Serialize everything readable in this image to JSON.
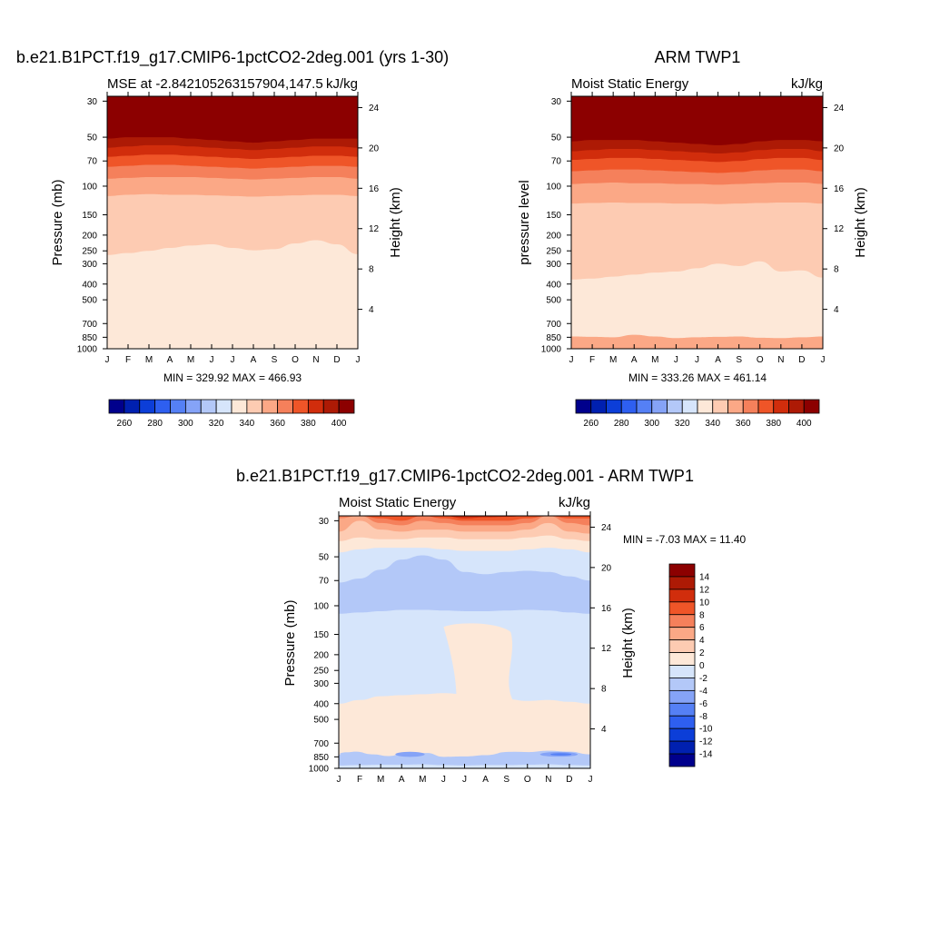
{
  "chart_data": [
    {
      "id": "model",
      "type": "heatmap",
      "title": "b.e21.B1PCT.f19_g17.CMIP6-1pctCO2-2deg.001 (yrs 1-30)",
      "left_label": "MSE at -2.842105263157904,147.5",
      "right_label": "kJ/kg",
      "ylabel": "Pressure (mb)",
      "ylabel_right": "Height (km)",
      "x_ticks": [
        "J",
        "F",
        "M",
        "A",
        "M",
        "J",
        "J",
        "A",
        "S",
        "O",
        "N",
        "D",
        "J"
      ],
      "y_ticks": [
        "30",
        "50",
        "70",
        "100",
        "150",
        "200",
        "250",
        "300",
        "400",
        "500",
        "700",
        "850",
        "1000"
      ],
      "height_ticks": [
        "24",
        "20",
        "16",
        "12",
        "8",
        "4"
      ],
      "minmax": "MIN = 329.92 MAX = 466.93",
      "levels": [
        260,
        270,
        280,
        290,
        300,
        310,
        320,
        330,
        340,
        350,
        360,
        370,
        380,
        390,
        400
      ],
      "colorbar_labels": [
        "260",
        "280",
        "300",
        "320",
        "340",
        "360",
        "380",
        "400"
      ],
      "colors": [
        "#00008c",
        "#0020b0",
        "#0c3ed8",
        "#2e5ff0",
        "#5580f5",
        "#85a3f7",
        "#b3c8f8",
        "#d6e5fb",
        "#fde8d8",
        "#fdcbb2",
        "#fba886",
        "#f5805b",
        "#ef5528",
        "#d12d0c",
        "#ad1a05",
        "#8c0000"
      ],
      "months": [
        "J",
        "F",
        "M",
        "A",
        "M",
        "J",
        "J",
        "A",
        "S",
        "O",
        "N",
        "D",
        "J"
      ],
      "boundaries_pressure": [
        {
          "level": 340,
          "p": [
            265,
            258,
            250,
            240,
            232,
            228,
            240,
            248,
            244,
            225,
            215,
            228,
            262
          ]
        },
        {
          "level": 350,
          "p": [
            115,
            113,
            112,
            113,
            113,
            114,
            115,
            116,
            115,
            114,
            113,
            113,
            115
          ]
        },
        {
          "level": 360,
          "p": [
            90,
            89,
            88,
            88,
            88,
            89,
            90,
            91,
            90,
            89,
            88,
            88,
            90
          ]
        },
        {
          "level": 370,
          "p": [
            76,
            75,
            74,
            74,
            75,
            76,
            77,
            78,
            77,
            76,
            75,
            75,
            76
          ]
        },
        {
          "level": 380,
          "p": [
            66,
            65,
            64,
            64,
            65,
            66,
            67,
            68,
            67,
            66,
            65,
            65,
            66
          ]
        },
        {
          "level": 390,
          "p": [
            58,
            57,
            56,
            56,
            57,
            58,
            59,
            60,
            59,
            58,
            57,
            57,
            58
          ]
        },
        {
          "level": 400,
          "p": [
            51,
            50,
            50,
            50,
            51,
            52,
            53,
            54,
            53,
            52,
            51,
            51,
            51
          ]
        }
      ],
      "surface_layer": {
        "level": 330,
        "p_top": 945
      }
    },
    {
      "id": "obs",
      "type": "heatmap",
      "title": "ARM TWP1",
      "left_label": "Moist Static Energy",
      "right_label": "kJ/kg",
      "ylabel": "pressure level",
      "ylabel_right": "Height (km)",
      "x_ticks": [
        "J",
        "F",
        "M",
        "A",
        "M",
        "J",
        "J",
        "A",
        "S",
        "O",
        "N",
        "D",
        "J"
      ],
      "y_ticks": [
        "30",
        "50",
        "70",
        "100",
        "150",
        "200",
        "250",
        "300",
        "400",
        "500",
        "700",
        "850",
        "1000"
      ],
      "height_ticks": [
        "24",
        "20",
        "16",
        "12",
        "8",
        "4"
      ],
      "minmax": "MIN = 333.26 MAX = 461.14",
      "levels": [
        260,
        270,
        280,
        290,
        300,
        310,
        320,
        330,
        340,
        350,
        360,
        370,
        380,
        390,
        400
      ],
      "colorbar_labels": [
        "260",
        "280",
        "300",
        "320",
        "340",
        "360",
        "380",
        "400"
      ],
      "colors": [
        "#00008c",
        "#0020b0",
        "#0c3ed8",
        "#2e5ff0",
        "#5580f5",
        "#85a3f7",
        "#b3c8f8",
        "#d6e5fb",
        "#fde8d8",
        "#fdcbb2",
        "#fba886",
        "#f5805b",
        "#ef5528",
        "#d12d0c",
        "#ad1a05",
        "#8c0000"
      ],
      "months": [
        "J",
        "F",
        "M",
        "A",
        "M",
        "J",
        "J",
        "A",
        "S",
        "O",
        "N",
        "D",
        "J"
      ],
      "boundaries_pressure": [
        {
          "level": 340,
          "p": [
            375,
            370,
            360,
            350,
            340,
            335,
            320,
            300,
            310,
            290,
            335,
            330,
            365
          ]
        },
        {
          "level": 350,
          "p": [
            128,
            127,
            126,
            127,
            127,
            128,
            128,
            129,
            128,
            127,
            126,
            126,
            128
          ]
        },
        {
          "level": 360,
          "p": [
            97,
            96,
            95,
            96,
            96,
            97,
            97,
            98,
            97,
            96,
            95,
            95,
            97
          ]
        },
        {
          "level": 370,
          "p": [
            81,
            80,
            79,
            79,
            80,
            81,
            82,
            83,
            82,
            80,
            79,
            79,
            81
          ]
        },
        {
          "level": 380,
          "p": [
            69,
            68,
            67,
            67,
            68,
            69,
            70,
            71,
            70,
            68,
            67,
            67,
            69
          ]
        },
        {
          "level": 390,
          "p": [
            61,
            60,
            59,
            59,
            60,
            61,
            62,
            63,
            62,
            60,
            59,
            59,
            61
          ]
        },
        {
          "level": 400,
          "p": [
            53,
            52,
            52,
            52,
            53,
            54,
            55,
            56,
            55,
            53,
            52,
            52,
            53
          ]
        }
      ],
      "bottom_band": {
        "level": 350,
        "p_top": [
          840,
          845,
          850,
          820,
          840,
          860,
          850,
          845,
          840,
          855,
          860,
          850,
          840
        ]
      }
    },
    {
      "id": "diff",
      "type": "heatmap",
      "title": "b.e21.B1PCT.f19_g17.CMIP6-1pctCO2-2deg.001 - ARM TWP1",
      "left_label": "Moist Static Energy",
      "right_label": "kJ/kg",
      "ylabel": "Pressure (mb)",
      "ylabel_right": "Height (km)",
      "x_ticks": [
        "J",
        "F",
        "M",
        "A",
        "M",
        "J",
        "J",
        "A",
        "S",
        "O",
        "N",
        "D",
        "J"
      ],
      "y_ticks": [
        "30",
        "50",
        "70",
        "100",
        "150",
        "200",
        "250",
        "300",
        "400",
        "500",
        "700",
        "850",
        "1000"
      ],
      "height_ticks": [
        "24",
        "20",
        "16",
        "12",
        "8",
        "4"
      ],
      "minmax": "MIN =  -7.03 MAX =  11.40",
      "levels": [
        -14,
        -12,
        -10,
        -8,
        -6,
        -4,
        -2,
        0,
        2,
        4,
        6,
        8,
        10,
        12,
        14
      ],
      "colorbar_labels": [
        "14",
        "12",
        "10",
        "8",
        "6",
        "4",
        "2",
        "0",
        "-2",
        "-4",
        "-6",
        "-8",
        "-10",
        "-12",
        "-14"
      ],
      "colors": [
        "#00008c",
        "#0020b0",
        "#0c3ed8",
        "#2e5ff0",
        "#5580f5",
        "#85a3f7",
        "#b3c8f8",
        "#d6e5fb",
        "#fde8d8",
        "#fdcbb2",
        "#fba886",
        "#f5805b",
        "#ef5528",
        "#d12d0c",
        "#ad1a05",
        "#8c0000"
      ]
    }
  ]
}
